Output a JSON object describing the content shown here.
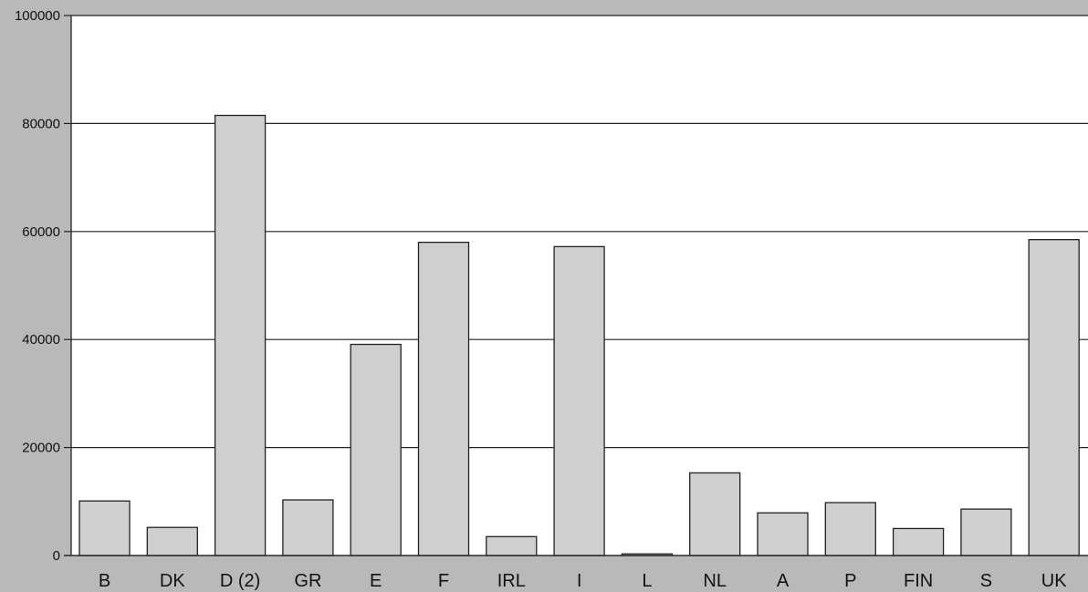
{
  "chart_data": {
    "type": "bar",
    "title": "",
    "xlabel": "",
    "ylabel": "",
    "categories": [
      "B",
      "DK",
      "D (2)",
      "GR",
      "E",
      "F",
      "IRL",
      "I",
      "L",
      "NL",
      "A",
      "P",
      "FIN",
      "S",
      "UK"
    ],
    "values": [
      10100,
      5200,
      81500,
      10300,
      39100,
      58000,
      3500,
      57200,
      300,
      15300,
      7900,
      9800,
      5000,
      8600,
      58500
    ],
    "ylim": [
      0,
      100000
    ],
    "yticks": [
      0,
      20000,
      40000,
      60000,
      80000,
      100000
    ],
    "ytick_labels": [
      "0",
      "20000",
      "40000",
      "60000",
      "80000",
      "100000"
    ],
    "grid": true,
    "colors": {
      "background": "#b9b9b9",
      "plot_background": "#ffffff",
      "bar_fill": "#cfcfcf",
      "bar_stroke": "#222222",
      "gridline": "#222222"
    }
  }
}
